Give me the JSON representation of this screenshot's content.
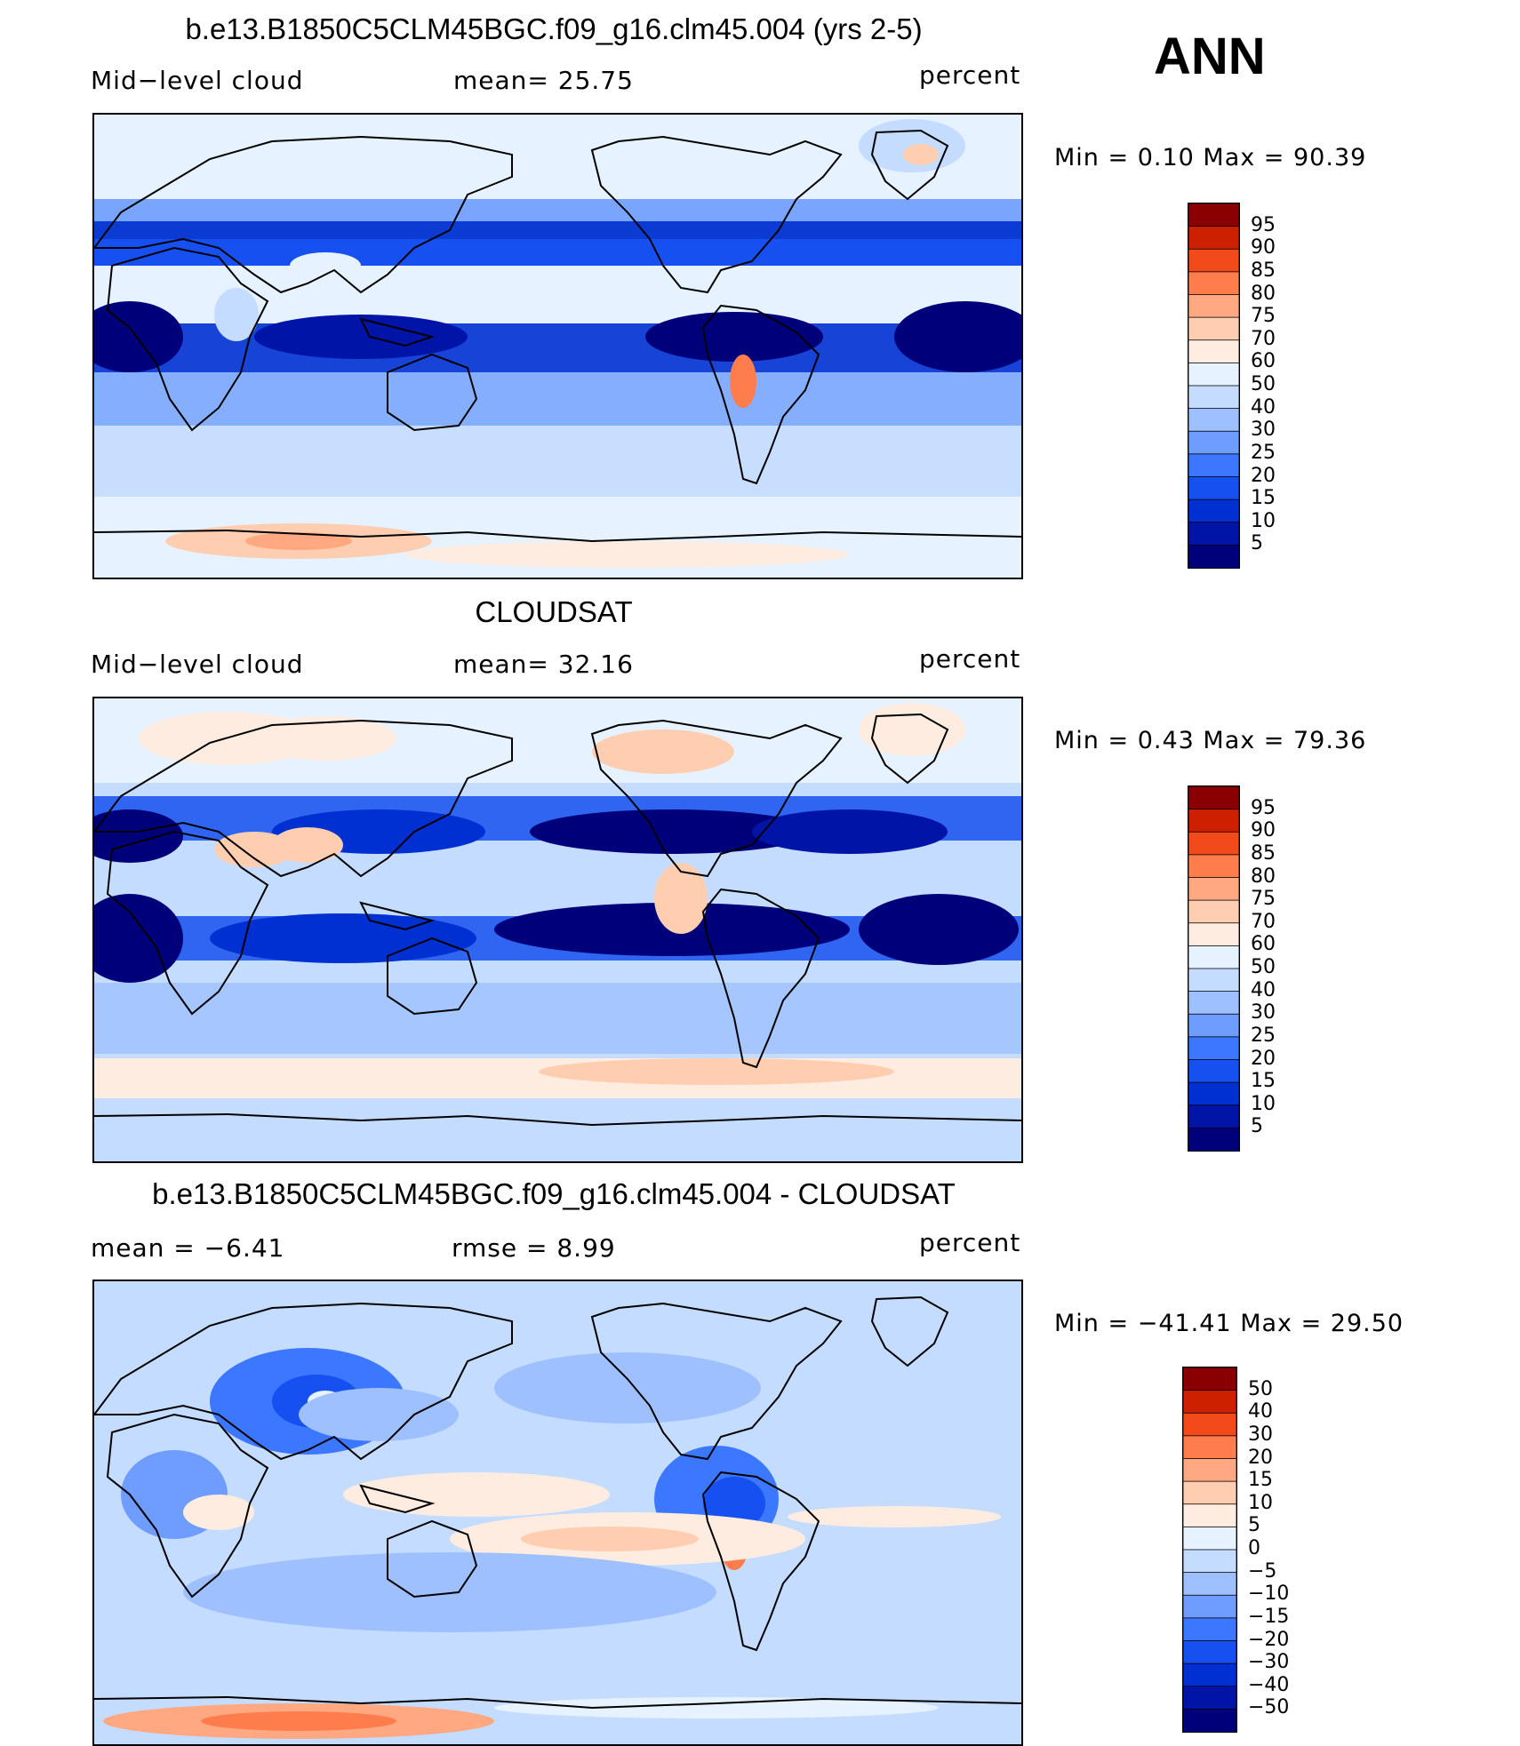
{
  "season": "ANN",
  "colors": {
    "scale": [
      "#00007a",
      "#0014a8",
      "#0030d2",
      "#1650f0",
      "#3c78ff",
      "#6e9cff",
      "#9ec0ff",
      "#c4dcff",
      "#e6f2ff",
      "#ffece0",
      "#ffcdb0",
      "#ffa882",
      "#ff7c4c",
      "#f24a1a",
      "#cc2000",
      "#8a0000"
    ],
    "coast": "#000000"
  },
  "panels": [
    {
      "title": "b.e13.B1850C5CLM45BGC.f09_g16.clm45.004 (yrs 2-5)",
      "left_label": "Mid−level cloud",
      "stat1": "mean=   25.75",
      "stat2": "",
      "units": "percent",
      "minmax": "Min =    0.10 Max =   90.39",
      "levels": [
        "95",
        "90",
        "85",
        "80",
        "75",
        "70",
        "60",
        "50",
        "40",
        "30",
        "25",
        "20",
        "15",
        "10",
        "5"
      ],
      "icon": "model-cloud-map"
    },
    {
      "title": "CLOUDSAT",
      "left_label": "Mid−level cloud",
      "stat1": "mean=   32.16",
      "stat2": "",
      "units": "percent",
      "minmax": "Min =    0.43 Max =   79.36",
      "levels": [
        "95",
        "90",
        "85",
        "80",
        "75",
        "70",
        "60",
        "50",
        "40",
        "30",
        "25",
        "20",
        "15",
        "10",
        "5"
      ],
      "icon": "obs-cloud-map"
    },
    {
      "title": "b.e13.B1850C5CLM45BGC.f09_g16.clm45.004 - CLOUDSAT",
      "left_label": "mean =   −6.41",
      "stat1": "",
      "stat2": "rmse =    8.99",
      "units": "percent",
      "minmax": "Min = −41.41 Max =   29.50",
      "levels": [
        "50",
        "40",
        "30",
        "20",
        "15",
        "10",
        "5",
        "0",
        "−5",
        "−10",
        "−15",
        "−20",
        "−30",
        "−40",
        "−50"
      ],
      "icon": "difference-cloud-map"
    }
  ]
}
